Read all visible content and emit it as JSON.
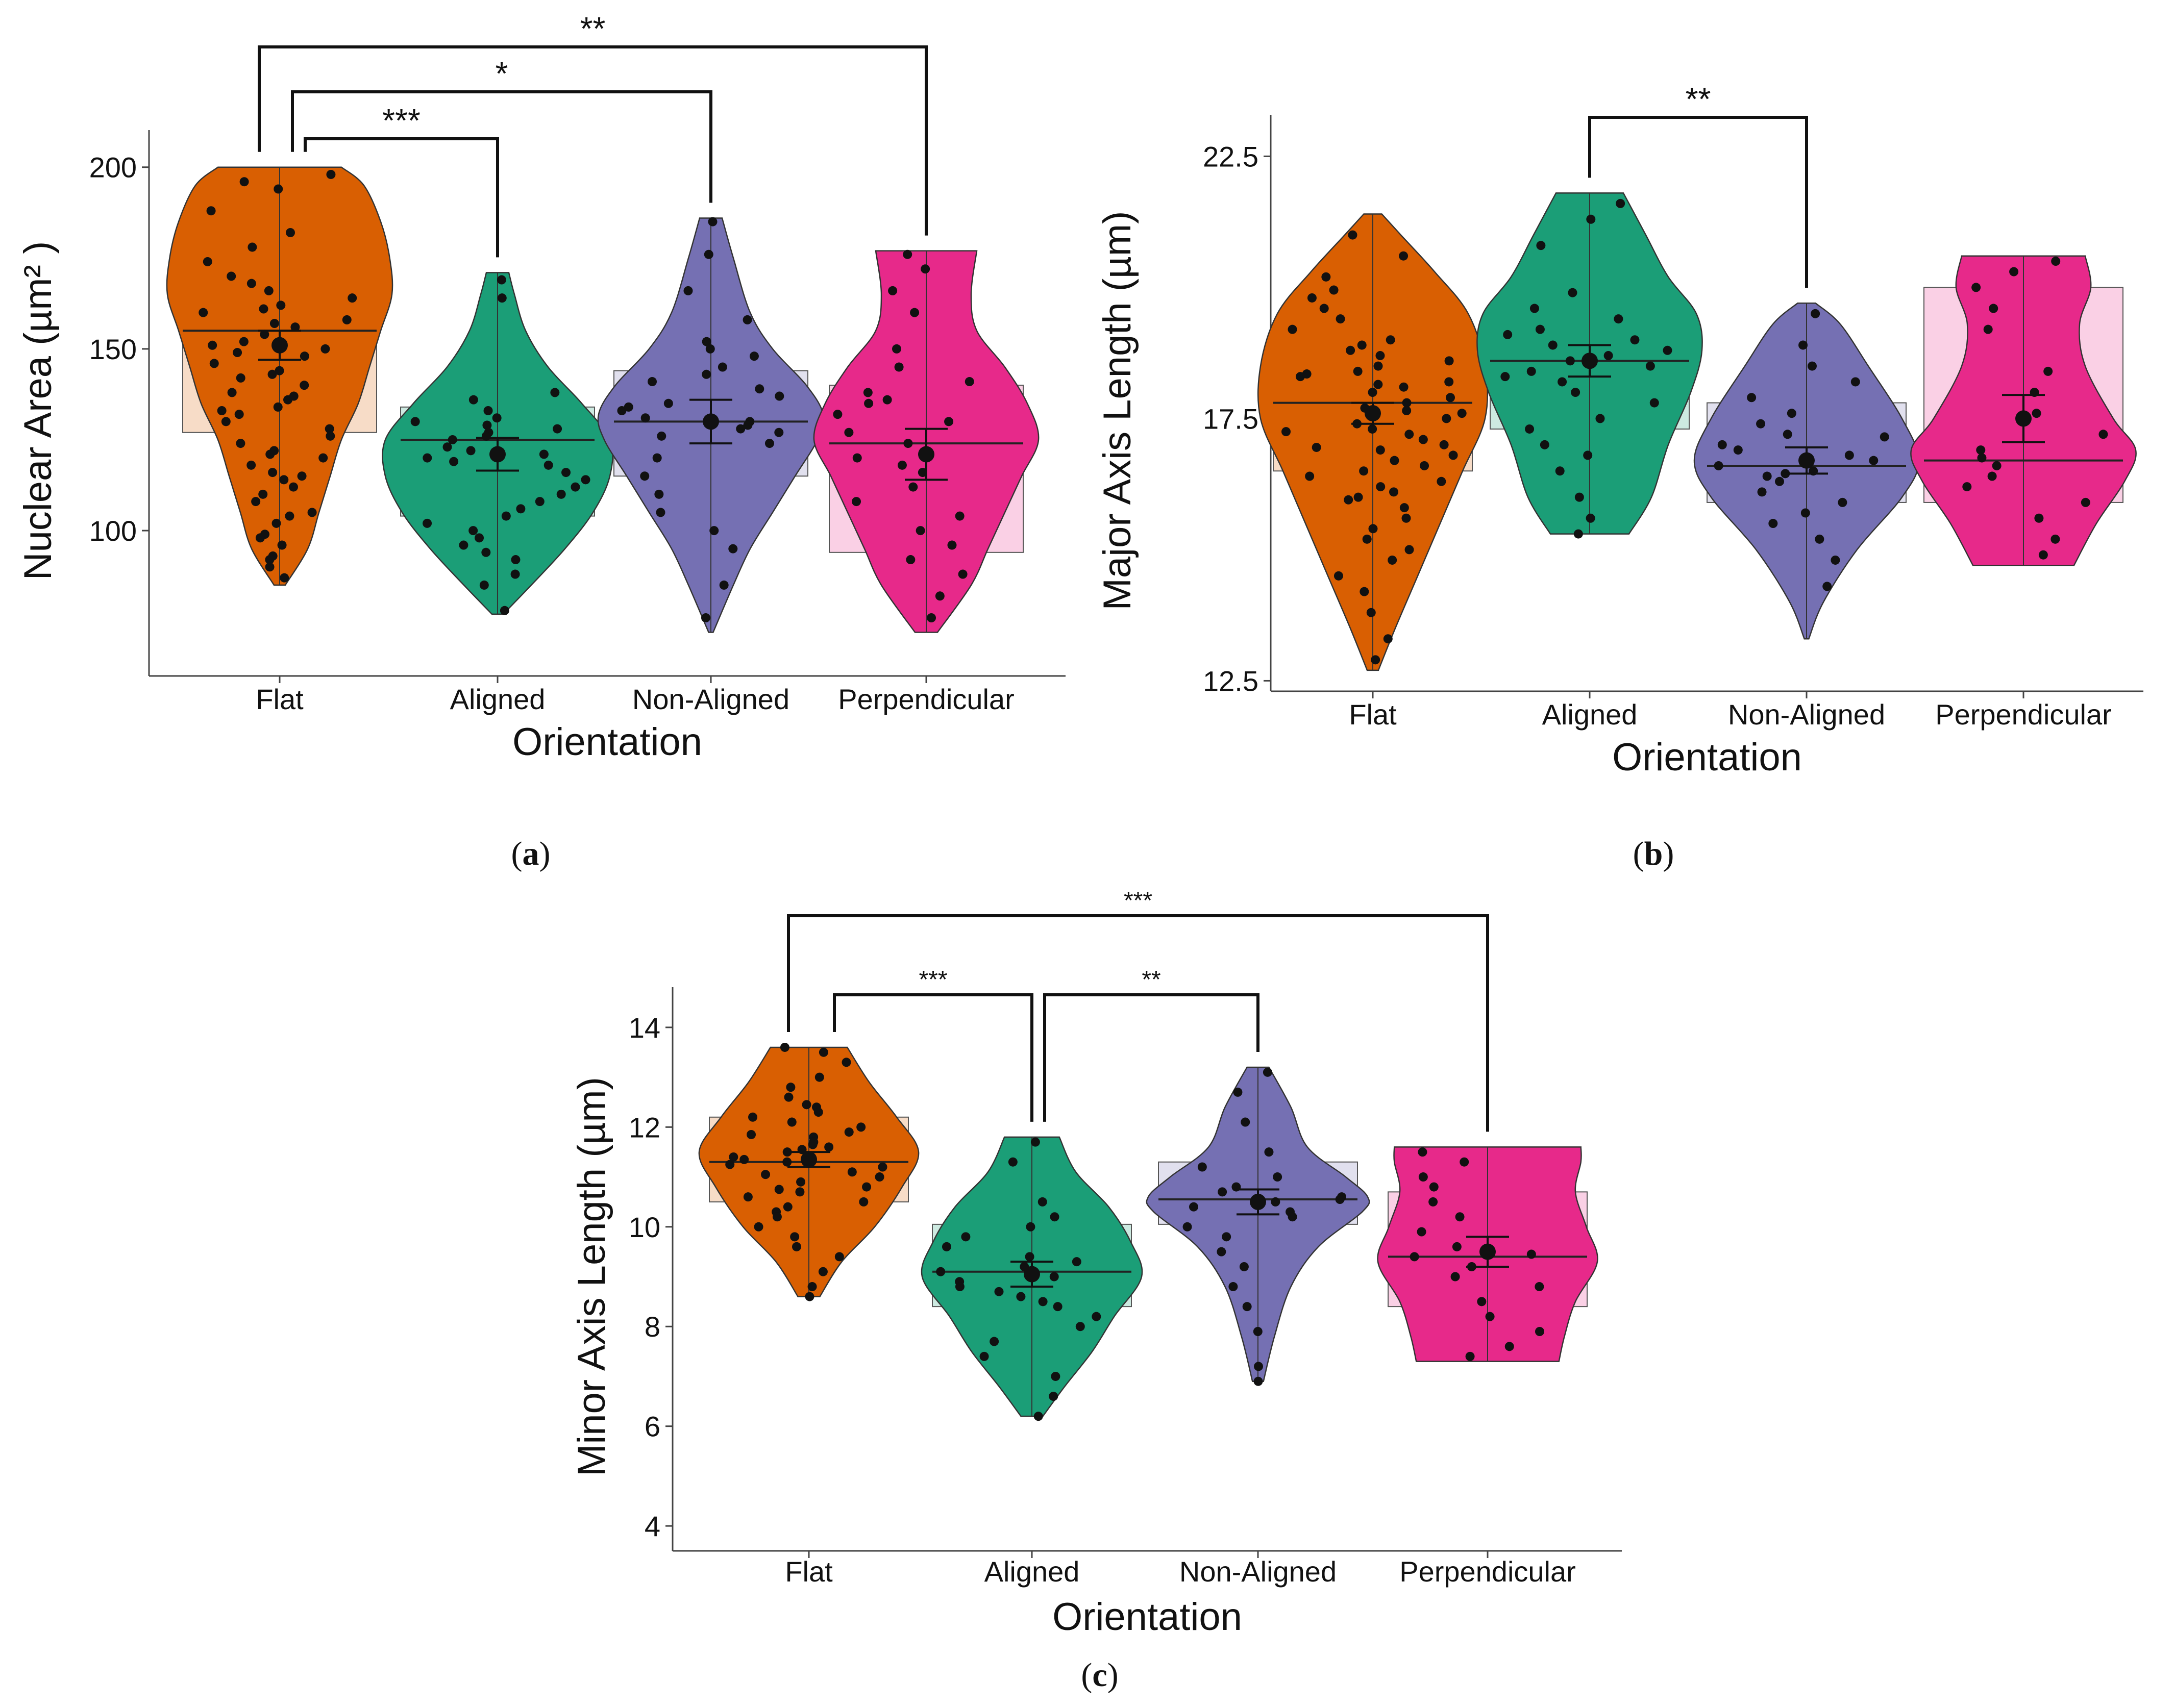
{
  "palette": {
    "Flat": "#D95F02",
    "Aligned": "#1B9E77",
    "Non-Aligned": "#7570B3",
    "Perpendicular": "#E7298A"
  },
  "chart_data": [
    {
      "id": "a",
      "type": "violin",
      "panel_label": "a",
      "xlabel": "Orientation",
      "ylabel": "Nuclear Area (µm² )",
      "categories": [
        "Flat",
        "Aligned",
        "Non-Aligned",
        "Perpendicular"
      ],
      "ylim": [
        60,
        206
      ],
      "yticks": [
        100,
        150,
        200
      ],
      "grid": false,
      "groups": [
        {
          "name": "Flat",
          "min": 85,
          "max": 200,
          "q1": 127,
          "median": 155,
          "q3": 180,
          "mean": 151,
          "se": 4,
          "violin": [
            [
              85,
              0.05
            ],
            [
              95,
              0.25
            ],
            [
              105,
              0.35
            ],
            [
              115,
              0.45
            ],
            [
              125,
              0.55
            ],
            [
              135,
              0.7
            ],
            [
              145,
              0.8
            ],
            [
              155,
              0.9
            ],
            [
              165,
              1.0
            ],
            [
              175,
              0.98
            ],
            [
              185,
              0.9
            ],
            [
              195,
              0.75
            ],
            [
              200,
              0.55
            ]
          ]
        },
        {
          "name": "Aligned",
          "min": 77,
          "max": 171,
          "q1": 104,
          "median": 125,
          "q3": 134,
          "mean": 121,
          "se": 4.5,
          "violin": [
            [
              77,
              0.05
            ],
            [
              85,
              0.3
            ],
            [
              95,
              0.6
            ],
            [
              105,
              0.85
            ],
            [
              115,
              1.0
            ],
            [
              125,
              1.0
            ],
            [
              135,
              0.75
            ],
            [
              145,
              0.45
            ],
            [
              155,
              0.25
            ],
            [
              165,
              0.15
            ],
            [
              171,
              0.1
            ]
          ]
        },
        {
          "name": "Non-Aligned",
          "min": 72,
          "max": 186,
          "q1": 115,
          "median": 130,
          "q3": 144,
          "mean": 130,
          "se": 6,
          "violin": [
            [
              72,
              0.02
            ],
            [
              85,
              0.2
            ],
            [
              95,
              0.35
            ],
            [
              105,
              0.55
            ],
            [
              115,
              0.75
            ],
            [
              125,
              0.95
            ],
            [
              132,
              1.0
            ],
            [
              140,
              0.85
            ],
            [
              150,
              0.55
            ],
            [
              160,
              0.35
            ],
            [
              175,
              0.2
            ],
            [
              186,
              0.1
            ]
          ]
        },
        {
          "name": "Perpendicular",
          "min": 72,
          "max": 177,
          "q1": 94,
          "median": 124,
          "q3": 140,
          "mean": 121,
          "se": 7,
          "violin": [
            [
              72,
              0.1
            ],
            [
              85,
              0.4
            ],
            [
              95,
              0.55
            ],
            [
              105,
              0.7
            ],
            [
              115,
              0.85
            ],
            [
              125,
              1.0
            ],
            [
              135,
              0.9
            ],
            [
              145,
              0.7
            ],
            [
              155,
              0.45
            ],
            [
              165,
              0.4
            ],
            [
              177,
              0.45
            ]
          ]
        }
      ],
      "points": [
        [
          194,
          182,
          174,
          170,
          166,
          162,
          160,
          158,
          156,
          154,
          152,
          150,
          148,
          146,
          144,
          142,
          140,
          138,
          136,
          134,
          132,
          130,
          128,
          126,
          124,
          122,
          120,
          118,
          116,
          114,
          112,
          110,
          108,
          105,
          102,
          99,
          96,
          93,
          90,
          87,
          168,
          178,
          188,
          198,
          196,
          164,
          157,
          149,
          137,
          121,
          115,
          104,
          98,
          92,
          143,
          151,
          133,
          161
        ],
        [
          169,
          164,
          138,
          136,
          133,
          131,
          129,
          128,
          127,
          126,
          125,
          123,
          121,
          120,
          119,
          118,
          116,
          114,
          112,
          110,
          108,
          106,
          104,
          102,
          100,
          98,
          96,
          94,
          92,
          88,
          85,
          78,
          130,
          122
        ],
        [
          185,
          176,
          166,
          158,
          152,
          148,
          145,
          143,
          141,
          139,
          137,
          135,
          133,
          131,
          130,
          129,
          128,
          127,
          126,
          124,
          120,
          115,
          110,
          105,
          100,
          95,
          85,
          76,
          150,
          134
        ],
        [
          176,
          172,
          166,
          160,
          150,
          145,
          141,
          138,
          135,
          132,
          130,
          127,
          124,
          120,
          116,
          112,
          108,
          104,
          100,
          96,
          92,
          88,
          82,
          76,
          136,
          118
        ]
      ],
      "significance": [
        {
          "from": "Flat",
          "to": "Aligned",
          "label": "***"
        },
        {
          "from": "Flat",
          "to": "Non-Aligned",
          "label": "*"
        },
        {
          "from": "Flat",
          "to": "Perpendicular",
          "label": "**"
        }
      ]
    },
    {
      "id": "b",
      "type": "violin",
      "panel_label": "b",
      "xlabel": "Orientation",
      "ylabel": "Major Axis Length (µm)",
      "categories": [
        "Flat",
        "Aligned",
        "Non-Aligned",
        "Perpendicular"
      ],
      "ylim": [
        12.3,
        23.0
      ],
      "yticks": [
        12.5,
        17.5,
        22.5
      ],
      "grid": false,
      "groups": [
        {
          "name": "Flat",
          "min": 12.7,
          "max": 21.4,
          "q1": 16.5,
          "median": 17.8,
          "q3": 19.1,
          "mean": 17.6,
          "se": 0.2,
          "violin": [
            [
              12.7,
              0.05
            ],
            [
              13.5,
              0.2
            ],
            [
              14.5,
              0.4
            ],
            [
              15.5,
              0.6
            ],
            [
              16.5,
              0.8
            ],
            [
              17.5,
              1.0
            ],
            [
              18.5,
              1.0
            ],
            [
              19.5,
              0.85
            ],
            [
              20.3,
              0.55
            ],
            [
              21.0,
              0.25
            ],
            [
              21.4,
              0.08
            ]
          ]
        },
        {
          "name": "Aligned",
          "min": 15.3,
          "max": 21.8,
          "q1": 17.3,
          "median": 18.6,
          "q3": 19.7,
          "mean": 18.6,
          "se": 0.3,
          "violin": [
            [
              15.3,
              0.35
            ],
            [
              16.0,
              0.55
            ],
            [
              17.0,
              0.7
            ],
            [
              18.0,
              0.9
            ],
            [
              18.8,
              1.0
            ],
            [
              19.5,
              0.95
            ],
            [
              20.2,
              0.7
            ],
            [
              21.0,
              0.5
            ],
            [
              21.8,
              0.3
            ]
          ]
        },
        {
          "name": "Non-Aligned",
          "min": 13.3,
          "max": 19.7,
          "q1": 15.9,
          "median": 16.6,
          "q3": 17.8,
          "mean": 16.7,
          "se": 0.25,
          "violin": [
            [
              13.3,
              0.02
            ],
            [
              14.0,
              0.15
            ],
            [
              15.0,
              0.45
            ],
            [
              16.0,
              0.85
            ],
            [
              16.7,
              1.0
            ],
            [
              17.5,
              0.85
            ],
            [
              18.5,
              0.55
            ],
            [
              19.3,
              0.3
            ],
            [
              19.7,
              0.08
            ]
          ]
        },
        {
          "name": "Perpendicular",
          "min": 14.7,
          "max": 20.6,
          "q1": 15.9,
          "median": 16.7,
          "q3": 20.0,
          "mean": 17.5,
          "se": 0.45,
          "violin": [
            [
              14.7,
              0.45
            ],
            [
              15.5,
              0.65
            ],
            [
              16.3,
              0.9
            ],
            [
              16.9,
              1.0
            ],
            [
              17.5,
              0.8
            ],
            [
              18.5,
              0.55
            ],
            [
              19.3,
              0.5
            ],
            [
              20.0,
              0.6
            ],
            [
              20.6,
              0.55
            ]
          ]
        }
      ],
      "points": [
        [
          21.0,
          20.6,
          20.2,
          19.8,
          19.6,
          19.4,
          19.2,
          19.0,
          18.9,
          18.8,
          18.7,
          18.6,
          18.5,
          18.4,
          18.3,
          18.2,
          18.1,
          18.0,
          17.9,
          17.8,
          17.7,
          17.6,
          17.5,
          17.4,
          17.3,
          17.2,
          17.1,
          17.0,
          16.9,
          16.8,
          16.7,
          16.6,
          16.5,
          16.4,
          16.3,
          16.2,
          16.1,
          16.0,
          15.8,
          15.6,
          15.4,
          15.2,
          15.0,
          14.8,
          14.5,
          14.2,
          13.8,
          13.3,
          12.9,
          18.35,
          17.65,
          16.95,
          19.95,
          18.15,
          15.95,
          17.25
        ],
        [
          21.6,
          21.3,
          20.8,
          19.9,
          19.6,
          19.4,
          19.2,
          19.0,
          18.9,
          18.8,
          18.7,
          18.6,
          18.5,
          18.4,
          18.2,
          18.0,
          17.8,
          17.5,
          17.3,
          17.0,
          16.8,
          16.5,
          16.0,
          15.6,
          15.3,
          18.3,
          19.1
        ],
        [
          19.5,
          18.9,
          18.5,
          18.2,
          17.9,
          17.6,
          17.4,
          17.2,
          17.0,
          16.9,
          16.8,
          16.7,
          16.6,
          16.5,
          16.4,
          16.3,
          16.1,
          15.9,
          15.7,
          15.5,
          15.2,
          14.8,
          14.3,
          16.45,
          17.15
        ],
        [
          20.5,
          20.3,
          20.0,
          19.6,
          19.2,
          18.4,
          17.6,
          17.2,
          16.9,
          16.6,
          16.4,
          16.2,
          15.9,
          15.6,
          15.2,
          14.9,
          16.75,
          18.0
        ]
      ],
      "significance": [
        {
          "from": "Aligned",
          "to": "Non-Aligned",
          "label": "**"
        }
      ]
    },
    {
      "id": "c",
      "type": "violin",
      "panel_label": "c",
      "xlabel": "Orientation",
      "ylabel": "Minor Axis Length (µm)",
      "categories": [
        "Flat",
        "Aligned",
        "Non-Aligned",
        "Perpendicular"
      ],
      "ylim": [
        3.5,
        14.5
      ],
      "yticks": [
        4,
        6,
        8,
        10,
        12,
        14
      ],
      "grid": false,
      "groups": [
        {
          "name": "Flat",
          "min": 8.6,
          "max": 13.6,
          "q1": 10.5,
          "median": 11.3,
          "q3": 12.2,
          "mean": 11.35,
          "se": 0.15,
          "violin": [
            [
              8.6,
              0.1
            ],
            [
              9.3,
              0.3
            ],
            [
              10.0,
              0.6
            ],
            [
              10.8,
              0.85
            ],
            [
              11.5,
              1.0
            ],
            [
              12.2,
              0.8
            ],
            [
              12.9,
              0.55
            ],
            [
              13.6,
              0.35
            ]
          ]
        },
        {
          "name": "Aligned",
          "min": 6.2,
          "max": 11.8,
          "q1": 8.4,
          "median": 9.1,
          "q3": 10.05,
          "mean": 9.05,
          "se": 0.25,
          "violin": [
            [
              6.2,
              0.1
            ],
            [
              6.8,
              0.3
            ],
            [
              7.5,
              0.55
            ],
            [
              8.2,
              0.75
            ],
            [
              9.0,
              1.0
            ],
            [
              9.7,
              0.9
            ],
            [
              10.4,
              0.7
            ],
            [
              11.1,
              0.4
            ],
            [
              11.8,
              0.25
            ]
          ]
        },
        {
          "name": "Non-Aligned",
          "min": 6.9,
          "max": 13.2,
          "q1": 10.05,
          "median": 10.55,
          "q3": 11.3,
          "mean": 10.5,
          "se": 0.25,
          "violin": [
            [
              6.9,
              0.05
            ],
            [
              7.8,
              0.15
            ],
            [
              8.8,
              0.3
            ],
            [
              9.6,
              0.55
            ],
            [
              10.3,
              0.95
            ],
            [
              10.6,
              1.0
            ],
            [
              11.0,
              0.8
            ],
            [
              11.6,
              0.45
            ],
            [
              12.4,
              0.3
            ],
            [
              13.2,
              0.1
            ]
          ]
        },
        {
          "name": "Perpendicular",
          "min": 7.3,
          "max": 11.6,
          "q1": 8.4,
          "median": 9.4,
          "q3": 10.7,
          "mean": 9.5,
          "se": 0.3,
          "violin": [
            [
              7.3,
              0.65
            ],
            [
              7.8,
              0.7
            ],
            [
              8.5,
              0.8
            ],
            [
              9.3,
              1.0
            ],
            [
              10.0,
              0.9
            ],
            [
              10.7,
              0.8
            ],
            [
              11.3,
              0.85
            ],
            [
              11.6,
              0.85
            ]
          ]
        }
      ],
      "points": [
        [
          13.6,
          13.5,
          13.3,
          13.0,
          12.8,
          12.6,
          12.4,
          12.3,
          12.2,
          12.1,
          12.0,
          11.9,
          11.8,
          11.7,
          11.6,
          11.5,
          11.4,
          11.35,
          11.3,
          11.2,
          11.1,
          11.0,
          10.9,
          10.8,
          10.7,
          10.6,
          10.5,
          10.4,
          10.3,
          10.2,
          10.0,
          9.8,
          9.6,
          9.4,
          9.1,
          8.8,
          8.6,
          11.25,
          11.55,
          11.85,
          12.45,
          10.75,
          11.05,
          11.65
        ],
        [
          11.7,
          11.3,
          10.5,
          10.2,
          10.0,
          9.8,
          9.6,
          9.4,
          9.2,
          9.1,
          9.0,
          8.9,
          8.8,
          8.7,
          8.6,
          8.4,
          8.2,
          8.0,
          7.7,
          7.4,
          7.0,
          6.6,
          6.2,
          9.3,
          8.5
        ],
        [
          13.1,
          12.7,
          12.1,
          11.5,
          11.2,
          11.0,
          10.8,
          10.7,
          10.6,
          10.5,
          10.4,
          10.3,
          10.2,
          10.0,
          9.8,
          9.5,
          9.2,
          8.8,
          8.4,
          7.9,
          7.2,
          6.9,
          10.55
        ],
        [
          11.5,
          11.3,
          11.0,
          10.8,
          10.5,
          10.2,
          9.9,
          9.6,
          9.4,
          9.2,
          9.0,
          8.8,
          8.5,
          8.2,
          7.9,
          7.6,
          7.4,
          9.45
        ]
      ],
      "significance": [
        {
          "from": "Flat",
          "to": "Aligned",
          "label": "***"
        },
        {
          "from": "Aligned",
          "to": "Non-Aligned",
          "label": "**"
        },
        {
          "from": "Flat",
          "to": "Perpendicular",
          "label": "***"
        }
      ]
    }
  ]
}
